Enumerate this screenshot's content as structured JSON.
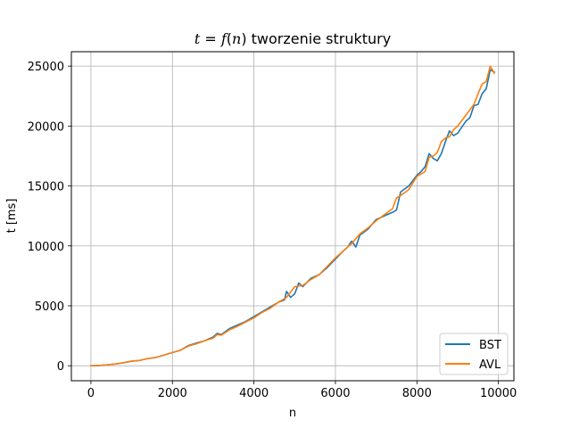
{
  "chart_data": {
    "type": "line",
    "title": {
      "prefix": "t",
      "equals": " = ",
      "func": "f",
      "open": "(",
      "arg": "n",
      "close": ")",
      "rest": " tworzenie struktury"
    },
    "xlabel": "n",
    "ylabel": "t [ms]",
    "xlim": [
      -480,
      10380
    ],
    "ylim": [
      -1250,
      26200
    ],
    "xticks": [
      0,
      2000,
      4000,
      6000,
      8000,
      10000
    ],
    "yticks": [
      0,
      5000,
      10000,
      15000,
      20000,
      25000
    ],
    "grid": true,
    "legend_position": "lower-right",
    "series": [
      {
        "name": "BST",
        "color": "#1f77b4",
        "x": [
          0,
          200,
          400,
          600,
          800,
          1000,
          1200,
          1400,
          1600,
          1800,
          2000,
          2200,
          2400,
          2600,
          2800,
          3000,
          3100,
          3200,
          3400,
          3600,
          3800,
          4000,
          4200,
          4400,
          4600,
          4750,
          4800,
          4900,
          5000,
          5100,
          5200,
          5400,
          5600,
          5800,
          6000,
          6200,
          6300,
          6400,
          6500,
          6600,
          6800,
          7000,
          7200,
          7400,
          7500,
          7600,
          7800,
          8000,
          8100,
          8200,
          8300,
          8400,
          8500,
          8600,
          8700,
          8800,
          8900,
          9000,
          9200,
          9300,
          9400,
          9500,
          9600,
          9700,
          9800,
          9900
        ],
        "y": [
          0,
          20,
          80,
          150,
          250,
          380,
          450,
          600,
          700,
          900,
          1100,
          1300,
          1700,
          1900,
          2100,
          2400,
          2700,
          2600,
          3100,
          3400,
          3700,
          4100,
          4500,
          4900,
          5300,
          5500,
          6200,
          5700,
          6000,
          6900,
          6600,
          7300,
          7600,
          8200,
          8900,
          9600,
          9900,
          10400,
          9900,
          10900,
          11400,
          12200,
          12500,
          12800,
          13000,
          14500,
          15000,
          15900,
          16200,
          16600,
          17700,
          17300,
          17100,
          17700,
          18700,
          19600,
          19200,
          19400,
          20400,
          20700,
          21700,
          21800,
          22700,
          23100,
          24700,
          24500
        ]
      },
      {
        "name": "AVL",
        "color": "#ff7f0e",
        "x": [
          0,
          200,
          400,
          600,
          800,
          1000,
          1200,
          1400,
          1600,
          1800,
          2000,
          2200,
          2400,
          2600,
          2800,
          3000,
          3100,
          3200,
          3400,
          3600,
          3800,
          4000,
          4200,
          4400,
          4600,
          4800,
          5000,
          5200,
          5400,
          5600,
          5800,
          6000,
          6200,
          6400,
          6600,
          6800,
          7000,
          7200,
          7400,
          7500,
          7600,
          7800,
          8000,
          8200,
          8300,
          8400,
          8500,
          8600,
          8700,
          8800,
          8900,
          9000,
          9200,
          9400,
          9500,
          9600,
          9700,
          9800,
          9900
        ],
        "y": [
          0,
          25,
          80,
          150,
          250,
          380,
          450,
          600,
          700,
          900,
          1100,
          1300,
          1650,
          1850,
          2100,
          2300,
          2600,
          2550,
          3000,
          3300,
          3650,
          4000,
          4450,
          4800,
          5300,
          5700,
          6600,
          6700,
          7200,
          7600,
          8300,
          9000,
          9600,
          10200,
          11000,
          11500,
          12100,
          12600,
          13100,
          14000,
          14200,
          14700,
          15800,
          16200,
          17400,
          17500,
          17800,
          18700,
          19000,
          19100,
          19700,
          20000,
          20900,
          21800,
          22700,
          23500,
          23700,
          25000,
          24400
        ]
      }
    ]
  }
}
